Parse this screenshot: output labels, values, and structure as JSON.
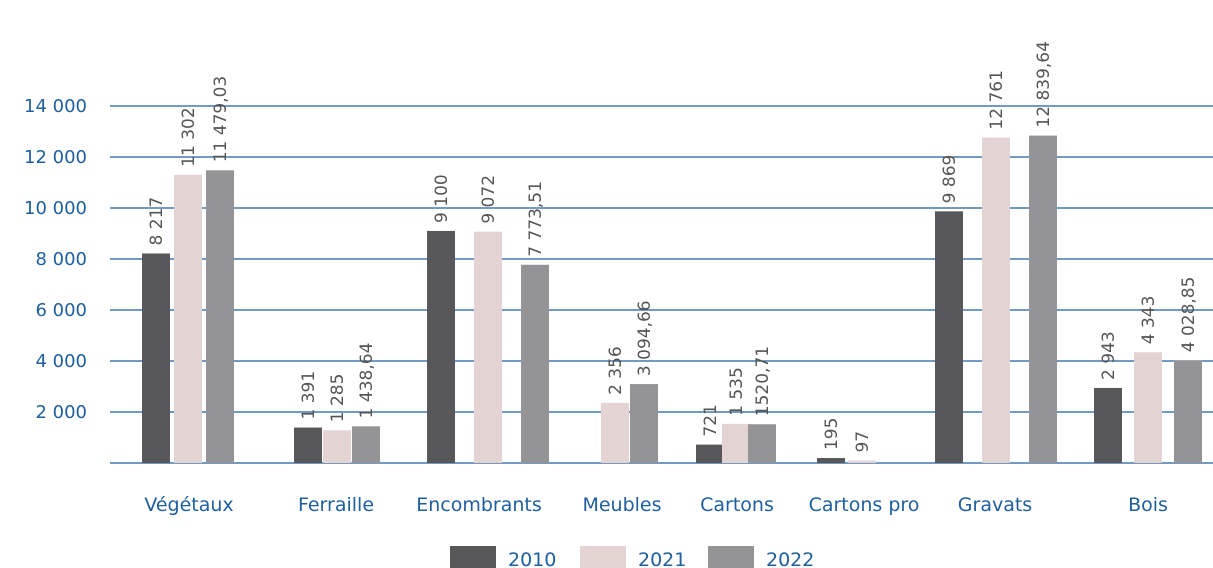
{
  "chart_data": {
    "type": "bar",
    "categories": [
      "Végétaux",
      "Ferraille",
      "Encombrants",
      "Meubles",
      "Cartons",
      "Cartons pro",
      "Gravats",
      "Bois"
    ],
    "series": [
      {
        "name": "2010",
        "color": "#58585a",
        "values": [
          8217,
          1391,
          9100,
          null,
          721,
          195,
          9869,
          2943
        ],
        "labels": [
          "8 217",
          "1 391",
          "9 100",
          "",
          "721",
          "195",
          "9 869",
          "2 943"
        ]
      },
      {
        "name": "2021",
        "color": "#e3d3d3",
        "values": [
          11302,
          1285,
          9072,
          2356,
          1535,
          97,
          12761,
          4343
        ],
        "labels": [
          "11 302",
          "1 285",
          "9 072",
          "2 356",
          "1 535",
          "97",
          "12 761",
          "4 343"
        ]
      },
      {
        "name": "2022",
        "color": "#949497",
        "values": [
          11479.03,
          1438.64,
          7773.51,
          3094.66,
          1520.71,
          null,
          12839.64,
          4028.85
        ],
        "labels": [
          "11 479,03",
          "1 438,64",
          "7 773,51",
          "3 094,66",
          "1520,71",
          "",
          "12 839,64",
          "4 028,85"
        ]
      }
    ],
    "ylim": [
      0,
      14000
    ],
    "yticks": [
      2000,
      4000,
      6000,
      8000,
      10000,
      12000,
      14000
    ],
    "ytick_labels": [
      "2 000",
      "4 000",
      "6 000",
      "8 000",
      "10 000",
      "12 000",
      "14 000"
    ],
    "grid": true,
    "grid_color": "#1f5fa0",
    "axis_text_color": "#1f5fa0",
    "legend_position": "bottom"
  }
}
